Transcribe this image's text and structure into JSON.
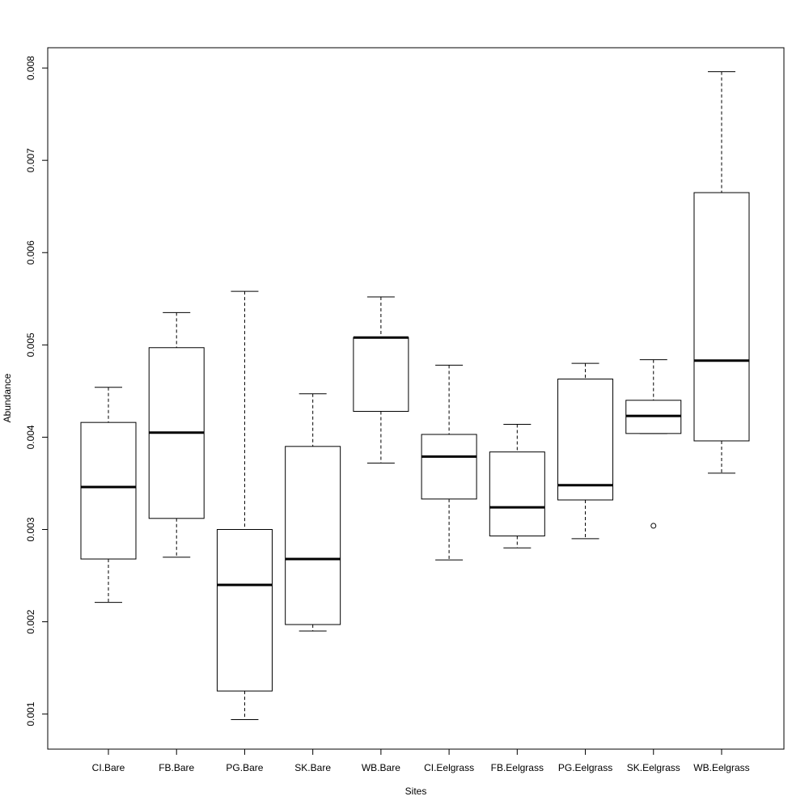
{
  "chart_data": {
    "type": "boxplot",
    "xlabel": "Sites",
    "ylabel": "Abundance",
    "ylim": [
      0.00062,
      0.00822
    ],
    "y_ticks": [
      "0.001",
      "0.002",
      "0.003",
      "0.004",
      "0.005",
      "0.006",
      "0.007",
      "0.008"
    ],
    "categories": [
      "CI.Bare",
      "FB.Bare",
      "PG.Bare",
      "SK.Bare",
      "WB.Bare",
      "CI.Eelgrass",
      "FB.Eelgrass",
      "PG.Eelgrass",
      "SK.Eelgrass",
      "WB.Eelgrass"
    ],
    "boxes": [
      {
        "category": "CI.Bare",
        "min": 0.00221,
        "q1": 0.00268,
        "median": 0.00346,
        "q3": 0.00416,
        "max": 0.00454,
        "outliers": []
      },
      {
        "category": "FB.Bare",
        "min": 0.0027,
        "q1": 0.00312,
        "median": 0.00405,
        "q3": 0.00497,
        "max": 0.00535,
        "outliers": []
      },
      {
        "category": "PG.Bare",
        "min": 0.00094,
        "q1": 0.00125,
        "median": 0.0024,
        "q3": 0.003,
        "max": 0.00558,
        "outliers": []
      },
      {
        "category": "SK.Bare",
        "min": 0.0019,
        "q1": 0.00197,
        "median": 0.00268,
        "q3": 0.0039,
        "max": 0.00447,
        "outliers": []
      },
      {
        "category": "WB.Bare",
        "min": 0.00372,
        "q1": 0.00428,
        "median": 0.00508,
        "q3": 0.00508,
        "max": 0.00552,
        "outliers": []
      },
      {
        "category": "CI.Eelgrass",
        "min": 0.00267,
        "q1": 0.00333,
        "median": 0.00379,
        "q3": 0.00403,
        "max": 0.00478,
        "outliers": []
      },
      {
        "category": "FB.Eelgrass",
        "min": 0.0028,
        "q1": 0.00293,
        "median": 0.00324,
        "q3": 0.00384,
        "max": 0.00414,
        "outliers": []
      },
      {
        "category": "PG.Eelgrass",
        "min": 0.0029,
        "q1": 0.00332,
        "median": 0.00348,
        "q3": 0.00463,
        "max": 0.0048,
        "outliers": []
      },
      {
        "category": "SK.Eelgrass",
        "min": 0.00404,
        "q1": 0.00404,
        "median": 0.00423,
        "q3": 0.0044,
        "max": 0.00484,
        "outliers": [
          0.00304
        ]
      },
      {
        "category": "WB.Eelgrass",
        "min": 0.00361,
        "q1": 0.00396,
        "median": 0.00483,
        "q3": 0.00665,
        "max": 0.00796,
        "outliers": []
      }
    ],
    "grid": false,
    "legend": "none"
  }
}
